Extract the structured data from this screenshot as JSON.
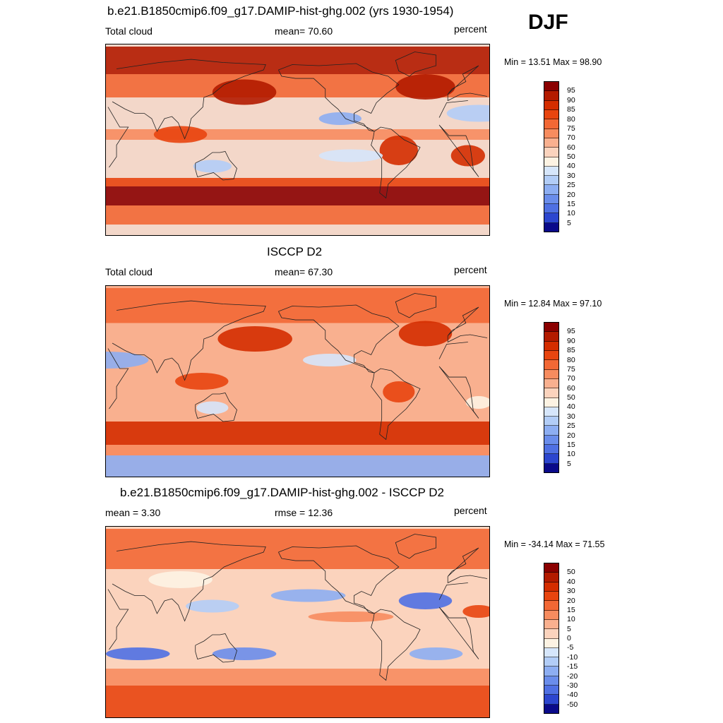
{
  "season": "DJF",
  "panels": [
    {
      "id": "model",
      "title": "b.e21.B1850cmip6.f09_g17.DAMIP-hist-ghg.002 (yrs 1930-1954)",
      "left_label": "Total cloud",
      "center_label": "mean=  70.60",
      "right_label": "percent",
      "minmax": "Min =  13.51 Max =  98.90",
      "colorbar": {
        "levels": [
          "95",
          "90",
          "85",
          "80",
          "75",
          "70",
          "60",
          "50",
          "40",
          "30",
          "25",
          "20",
          "15",
          "10",
          "5"
        ],
        "colors": [
          "#8b0000",
          "#b31b00",
          "#d42d00",
          "#e8450f",
          "#f26835",
          "#f78c5f",
          "#f9b08f",
          "#fbd3bd",
          "#fdf3e3",
          "#d6e6fb",
          "#b2cdf7",
          "#8daef2",
          "#6a8deb",
          "#4f70e3",
          "#2c46cf",
          "#0a0a8a"
        ]
      },
      "map_fill": "#f3d7c9",
      "map_features": [
        {
          "type": "band",
          "lat": [
            -62,
            -44
          ],
          "color": "#8b0000"
        },
        {
          "type": "band",
          "lat": [
            -44,
            -36
          ],
          "color": "#e8450f"
        },
        {
          "type": "band",
          "lat": [
            -80,
            -62
          ],
          "color": "#f26835"
        },
        {
          "type": "band",
          "lat": [
            62,
            88
          ],
          "color": "#b31b00"
        },
        {
          "type": "band",
          "lat": [
            40,
            62
          ],
          "color": "#f26835"
        },
        {
          "type": "band",
          "lat": [
            0,
            10
          ],
          "color": "#f78c5f"
        },
        {
          "type": "blob",
          "lon": 160,
          "lat": 45,
          "rx": 30,
          "ry": 12,
          "color": "#b31b00"
        },
        {
          "type": "blob",
          "lon": -30,
          "lat": 50,
          "rx": 28,
          "ry": 12,
          "color": "#b31b00"
        },
        {
          "type": "blob",
          "lon": 20,
          "lat": 25,
          "rx": 30,
          "ry": 8,
          "color": "#b2cdf7"
        },
        {
          "type": "blob",
          "lon": -110,
          "lat": 20,
          "rx": 20,
          "ry": 6,
          "color": "#8daef2"
        },
        {
          "type": "blob",
          "lon": 10,
          "lat": -15,
          "rx": 16,
          "ry": 10,
          "color": "#d42d00"
        },
        {
          "type": "blob",
          "lon": -55,
          "lat": -10,
          "rx": 18,
          "ry": 14,
          "color": "#d42d00"
        },
        {
          "type": "blob",
          "lon": -100,
          "lat": -15,
          "rx": 30,
          "ry": 6,
          "color": "#d6e6fb"
        },
        {
          "type": "blob",
          "lon": 100,
          "lat": 5,
          "rx": 25,
          "ry": 8,
          "color": "#e8450f"
        },
        {
          "type": "blob",
          "lon": 130,
          "lat": -25,
          "rx": 18,
          "ry": 6,
          "color": "#b2cdf7"
        }
      ]
    },
    {
      "id": "obs",
      "title": "ISCCP D2",
      "left_label": "Total cloud",
      "center_label": "mean=  67.30",
      "right_label": "percent",
      "minmax": "Min =  12.84 Max =  97.10",
      "colorbar": {
        "levels": [
          "95",
          "90",
          "85",
          "80",
          "75",
          "70",
          "60",
          "50",
          "40",
          "30",
          "25",
          "20",
          "15",
          "10",
          "5"
        ],
        "colors": [
          "#8b0000",
          "#b31b00",
          "#d42d00",
          "#e8450f",
          "#f26835",
          "#f78c5f",
          "#f9b08f",
          "#fbd3bd",
          "#fdf3e3",
          "#d6e6fb",
          "#b2cdf7",
          "#8daef2",
          "#6a8deb",
          "#4f70e3",
          "#2c46cf",
          "#0a0a8a"
        ]
      },
      "map_fill": "#f9b08f",
      "map_features": [
        {
          "type": "band",
          "lat": [
            -60,
            -38
          ],
          "color": "#d42d00"
        },
        {
          "type": "band",
          "lat": [
            -70,
            -60
          ],
          "color": "#f78c5f"
        },
        {
          "type": "band",
          "lat": [
            -90,
            -70
          ],
          "color": "#8daef2"
        },
        {
          "type": "band",
          "lat": [
            55,
            88
          ],
          "color": "#f26835"
        },
        {
          "type": "blob",
          "lon": 170,
          "lat": 40,
          "rx": 35,
          "ry": 12,
          "color": "#d42d00"
        },
        {
          "type": "blob",
          "lon": -30,
          "lat": 45,
          "rx": 25,
          "ry": 12,
          "color": "#d42d00"
        },
        {
          "type": "blob",
          "lon": 30,
          "lat": 20,
          "rx": 40,
          "ry": 8,
          "color": "#8daef2"
        },
        {
          "type": "blob",
          "lon": -120,
          "lat": 20,
          "rx": 25,
          "ry": 6,
          "color": "#d6e6fb"
        },
        {
          "type": "blob",
          "lon": -55,
          "lat": -10,
          "rx": 15,
          "ry": 10,
          "color": "#e8450f"
        },
        {
          "type": "blob",
          "lon": 120,
          "lat": 0,
          "rx": 25,
          "ry": 8,
          "color": "#e8450f"
        },
        {
          "type": "blob",
          "lon": 130,
          "lat": -25,
          "rx": 15,
          "ry": 6,
          "color": "#d6e6fb"
        },
        {
          "type": "blob",
          "lon": 20,
          "lat": -20,
          "rx": 12,
          "ry": 6,
          "color": "#fdf3e3"
        }
      ]
    },
    {
      "id": "diff",
      "title": "b.e21.B1850cmip6.f09_g17.DAMIP-hist-ghg.002 - ISCCP D2",
      "left_label": "mean =   3.30",
      "center_label": "rmse =  12.36",
      "right_label": "percent",
      "minmax": "Min = -34.14 Max =  71.55",
      "colorbar": {
        "levels": [
          "50",
          "40",
          "30",
          "20",
          "15",
          "10",
          "5",
          "0",
          "-5",
          "-10",
          "-15",
          "-20",
          "-30",
          "-40",
          "-50"
        ],
        "colors": [
          "#8b0000",
          "#b31b00",
          "#d42d00",
          "#e8450f",
          "#f26835",
          "#f78c5f",
          "#f9b08f",
          "#fbd3bd",
          "#fdf3e3",
          "#d6e6fb",
          "#b2cdf7",
          "#8daef2",
          "#6a8deb",
          "#4f70e3",
          "#2c46cf",
          "#0a0a8a"
        ]
      },
      "map_fill": "#fbd3bd",
      "map_features": [
        {
          "type": "band",
          "lat": [
            50,
            88
          ],
          "color": "#f26835"
        },
        {
          "type": "band",
          "lat": [
            -60,
            -44
          ],
          "color": "#f78c5f"
        },
        {
          "type": "band",
          "lat": [
            -90,
            -60
          ],
          "color": "#e8450f"
        },
        {
          "type": "blob",
          "lon": -30,
          "lat": 20,
          "rx": 25,
          "ry": 8,
          "color": "#4f70e3"
        },
        {
          "type": "blob",
          "lon": -140,
          "lat": 25,
          "rx": 35,
          "ry": 6,
          "color": "#8daef2"
        },
        {
          "type": "blob",
          "lon": 60,
          "lat": -30,
          "rx": 30,
          "ry": 6,
          "color": "#4f70e3"
        },
        {
          "type": "blob",
          "lon": 160,
          "lat": -30,
          "rx": 30,
          "ry": 6,
          "color": "#6a8deb"
        },
        {
          "type": "blob",
          "lon": -20,
          "lat": -30,
          "rx": 25,
          "ry": 6,
          "color": "#8daef2"
        },
        {
          "type": "blob",
          "lon": 130,
          "lat": 15,
          "rx": 25,
          "ry": 6,
          "color": "#b2cdf7"
        },
        {
          "type": "blob",
          "lon": 20,
          "lat": 10,
          "rx": 15,
          "ry": 6,
          "color": "#e8450f"
        },
        {
          "type": "blob",
          "lon": -100,
          "lat": 5,
          "rx": 40,
          "ry": 5,
          "color": "#f78c5f"
        },
        {
          "type": "blob",
          "lon": 100,
          "lat": 40,
          "rx": 30,
          "ry": 8,
          "color": "#fdf3e3"
        }
      ]
    }
  ]
}
